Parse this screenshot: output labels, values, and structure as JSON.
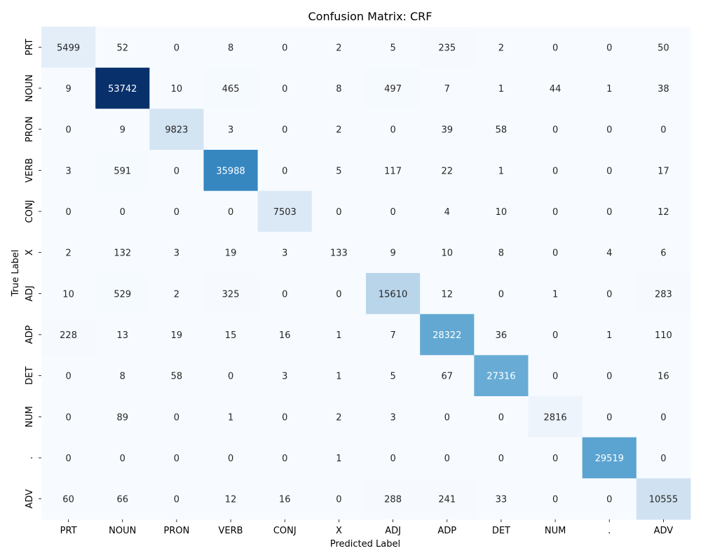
{
  "chart_data": {
    "type": "heatmap",
    "title": "Confusion Matrix: CRF",
    "xlabel": "Predicted Label",
    "ylabel": "True Label",
    "x_categories": [
      "PRT",
      "NOUN",
      "PRON",
      "VERB",
      "CONJ",
      "X",
      "ADJ",
      "ADP",
      "DET",
      "NUM",
      ".",
      "ADV"
    ],
    "y_categories": [
      "PRT",
      "NOUN",
      "PRON",
      "VERB",
      "CONJ",
      "X",
      "ADJ",
      "ADP",
      "DET",
      "NUM",
      ".",
      "ADV"
    ],
    "values": [
      [
        5499,
        52,
        0,
        8,
        0,
        2,
        5,
        235,
        2,
        0,
        0,
        50
      ],
      [
        9,
        53742,
        10,
        465,
        0,
        8,
        497,
        7,
        1,
        44,
        1,
        38
      ],
      [
        0,
        9,
        9823,
        3,
        0,
        2,
        0,
        39,
        58,
        0,
        0,
        0
      ],
      [
        3,
        591,
        0,
        35988,
        0,
        5,
        117,
        22,
        1,
        0,
        0,
        17
      ],
      [
        0,
        0,
        0,
        0,
        7503,
        0,
        0,
        4,
        10,
        0,
        0,
        12
      ],
      [
        2,
        132,
        3,
        19,
        3,
        133,
        9,
        10,
        8,
        0,
        4,
        6
      ],
      [
        10,
        529,
        2,
        325,
        0,
        0,
        15610,
        12,
        0,
        1,
        0,
        283
      ],
      [
        228,
        13,
        19,
        15,
        16,
        1,
        7,
        28322,
        36,
        0,
        1,
        110
      ],
      [
        0,
        8,
        58,
        0,
        3,
        1,
        5,
        67,
        27316,
        0,
        0,
        16
      ],
      [
        0,
        89,
        0,
        1,
        0,
        2,
        3,
        0,
        0,
        2816,
        0,
        0
      ],
      [
        0,
        0,
        0,
        0,
        0,
        1,
        0,
        0,
        0,
        0,
        29519,
        0
      ],
      [
        60,
        66,
        0,
        12,
        16,
        0,
        288,
        241,
        33,
        0,
        0,
        10555
      ]
    ],
    "colormap": "Blues",
    "annotated": true,
    "colorbar": false,
    "vmin": 0,
    "vmax": 53742
  }
}
